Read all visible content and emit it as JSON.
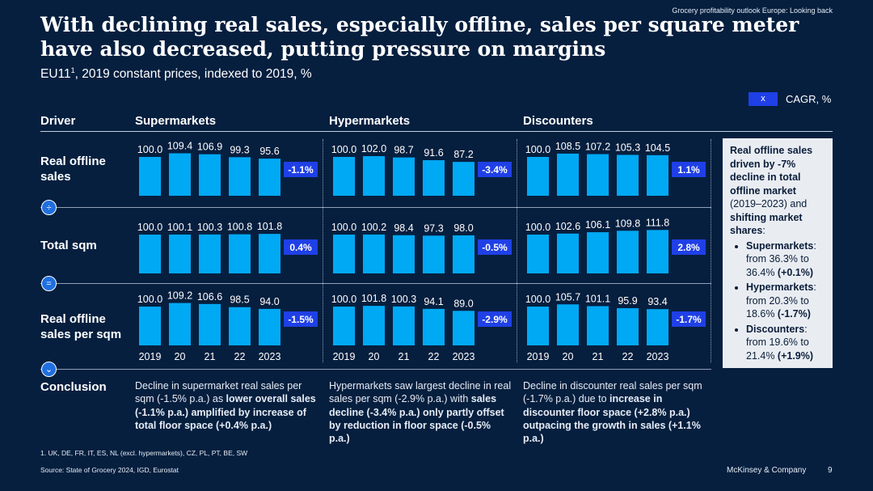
{
  "header": {
    "note": "Grocery profitability outlook Europe: Looking back",
    "title": "With declining real sales, especially offline, sales per square meter have also decreased, putting pressure on margins",
    "subtitle_main": "EU11",
    "subtitle_sup": "1",
    "subtitle_rest": ", 2019 constant prices, indexed to 2019, %"
  },
  "legend": {
    "marker": "x",
    "label": "CAGR, %"
  },
  "columns": {
    "driver": "Driver",
    "c0": "Supermarkets",
    "c1": "Hypermarkets",
    "c2": "Discounters"
  },
  "rows": {
    "r0": "Real offline sales",
    "r1": "Total sqm",
    "r2": "Real offline sales per sqm",
    "r3": "Conclusion"
  },
  "operators": {
    "divide": "÷",
    "equals": "=",
    "conclude": "⌄"
  },
  "chart_data": {
    "type": "bar",
    "years": [
      "2019",
      "20",
      "21",
      "22",
      "2023"
    ],
    "panels": [
      {
        "row": "Real offline sales",
        "segment": "Supermarkets",
        "values": [
          100.0,
          109.4,
          106.9,
          99.3,
          95.6
        ],
        "labels": [
          "100.0",
          "109.4",
          "106.9",
          "99.3",
          "95.6"
        ],
        "cagr": "-1.1%"
      },
      {
        "row": "Real offline sales",
        "segment": "Hypermarkets",
        "values": [
          100.0,
          102.0,
          98.7,
          91.6,
          87.2
        ],
        "labels": [
          "100.0",
          "102.0",
          "98.7",
          "91.6",
          "87.2"
        ],
        "cagr": "-3.4%"
      },
      {
        "row": "Real offline sales",
        "segment": "Discounters",
        "values": [
          100.0,
          108.5,
          107.2,
          105.3,
          104.5
        ],
        "labels": [
          "100.0",
          "108.5",
          "107.2",
          "105.3",
          "104.5"
        ],
        "cagr": "1.1%"
      },
      {
        "row": "Total sqm",
        "segment": "Supermarkets",
        "values": [
          100.0,
          100.1,
          100.3,
          100.8,
          101.8
        ],
        "labels": [
          "100.0",
          "100.1",
          "100.3",
          "100.8",
          "101.8"
        ],
        "cagr": "0.4%"
      },
      {
        "row": "Total sqm",
        "segment": "Hypermarkets",
        "values": [
          100.0,
          100.2,
          98.4,
          97.3,
          98.0
        ],
        "labels": [
          "100.0",
          "100.2",
          "98.4",
          "97.3",
          "98.0"
        ],
        "cagr": "-0.5%"
      },
      {
        "row": "Total sqm",
        "segment": "Discounters",
        "values": [
          100.0,
          102.6,
          106.1,
          109.8,
          111.8
        ],
        "labels": [
          "100.0",
          "102.6",
          "106.1",
          "109.8",
          "111.8"
        ],
        "cagr": "2.8%"
      },
      {
        "row": "Real offline sales per sqm",
        "segment": "Supermarkets",
        "values": [
          100.0,
          109.2,
          106.6,
          98.5,
          94.0
        ],
        "labels": [
          "100.0",
          "109.2",
          "106.6",
          "98.5",
          "94.0"
        ],
        "cagr": "-1.5%"
      },
      {
        "row": "Real offline sales per sqm",
        "segment": "Hypermarkets",
        "values": [
          100.0,
          101.8,
          100.3,
          94.1,
          89.0
        ],
        "labels": [
          "100.0",
          "101.8",
          "100.3",
          "94.1",
          "89.0"
        ],
        "cagr": "-2.9%"
      },
      {
        "row": "Real offline sales per sqm",
        "segment": "Discounters",
        "values": [
          100.0,
          105.7,
          101.1,
          95.9,
          93.4
        ],
        "labels": [
          "100.0",
          "105.7",
          "101.1",
          "95.9",
          "93.4"
        ],
        "cagr": "-1.7%"
      }
    ]
  },
  "note": {
    "p1": "Real offline sales driven by -7% decline in total offline market",
    "p2": " (2019–2023) and ",
    "p3": "shifting market shares",
    "p4": ":",
    "items": [
      {
        "name": "Supermarkets",
        "text": " from 36.3% to 36.4% ",
        "delta": "(+0.1%)"
      },
      {
        "name": "Hypermarkets",
        "text": " from 20.3% to 18.6% ",
        "delta": "(-1.7%)"
      },
      {
        "name": "Discounters",
        "text": " from 19.6% to 21.4% ",
        "delta": "(+1.9%)"
      }
    ]
  },
  "conclusions": {
    "c0": {
      "a": "Decline in supermarket real sales per sqm (-1.5% p.a.) as ",
      "b": "lower overall sales (-1.1% p.a.) amplified by increase of total floor space (+0.4% p.a.)",
      "c": ""
    },
    "c1": {
      "a": "Hypermarkets saw largest decline in real sales per sqm (-2.9% p.a.) with ",
      "b": "sales decline (-3.4% p.a.) only partly offset by reduction in floor space (-0.5% p.a.)",
      "c": ""
    },
    "c2": {
      "a": "Decline in discounter real sales per sqm (-1.7% p.a.) due to ",
      "b": "increase in discounter floor space (+2.8% p.a.) outpacing the growth in sales (+1.1% p.a.)",
      "c": ""
    }
  },
  "footer": {
    "footnote": "1.   UK, DE, FR, IT, ES, NL (excl. hypermarkets), CZ, PL, PT, BE, SW",
    "source": "Source: State of Grocery 2024, IGD, Eurostat",
    "brand": "McKinsey & Company",
    "page": "9"
  },
  "colors": {
    "bar": "#00a9f4",
    "cagr_box": "#1f40e6",
    "background": "#061f3f"
  }
}
